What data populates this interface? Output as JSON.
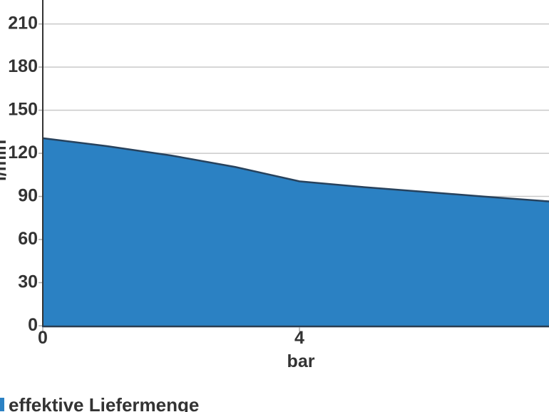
{
  "chart_data": {
    "type": "area",
    "title": "",
    "xlabel": "bar",
    "ylabel": "l/min",
    "xticks": [
      0,
      4
    ],
    "yticks": [
      0,
      30,
      60,
      90,
      120,
      150,
      180,
      210
    ],
    "xlim": [
      0,
      7.9
    ],
    "ylim": [
      0,
      227
    ],
    "grid": true,
    "legend_position": "bottom-left",
    "series": [
      {
        "name": "effektive Liefermenge",
        "x": [
          0,
          1,
          2,
          3,
          4,
          5,
          6,
          7,
          7.9
        ],
        "y": [
          130.5,
          125,
          118.5,
          110.5,
          100.5,
          96.5,
          93,
          89.5,
          86.5
        ]
      }
    ]
  },
  "colors": {
    "area_fill": "#2b81c3",
    "area_line": "#27425d",
    "grid": "#c9c9c9",
    "tick": "#aaaaaa",
    "y_axis": "#333333",
    "x_axis": "#2b3e52",
    "text": "#333333"
  }
}
